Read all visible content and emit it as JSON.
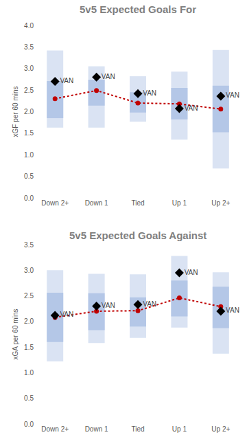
{
  "chart_data": [
    {
      "type": "range",
      "title": "5v5 Expected Goals For",
      "ylabel": "xGF per 60 mins",
      "categories": [
        "Down 2+",
        "Down 1",
        "Tied",
        "Up 1",
        "Up 2+"
      ],
      "ylim": [
        0,
        4
      ],
      "yticks": [
        {
          "value": 0,
          "label": "0.0"
        },
        0.5,
        {
          "value": 1,
          "label": "1.0"
        },
        1.5,
        {
          "value": 2,
          "label": "2.0"
        },
        2.5,
        {
          "value": 3,
          "label": "3.0"
        },
        3.5,
        {
          "value": 4,
          "label": "4.0"
        }
      ],
      "grid": false,
      "series": [
        {
          "type": "range",
          "color": "#dae3f3",
          "low": [
            1.63,
            1.63,
            1.77,
            1.35,
            0.68
          ],
          "high": [
            3.42,
            3.05,
            2.82,
            2.93,
            3.43
          ]
        },
        {
          "type": "range",
          "color": "#b4c7e7",
          "low": [
            1.85,
            2.14,
            1.98,
            1.82,
            1.52
          ],
          "high": [
            2.71,
            2.74,
            2.45,
            2.55,
            2.6
          ]
        },
        {
          "type": "line",
          "color": "#c00000",
          "line_style": "dot",
          "marker": "circle",
          "values": [
            2.3,
            2.49,
            2.2,
            2.18,
            2.06
          ]
        },
        {
          "type": "scatter",
          "color": "#000000",
          "marker": "diamond",
          "values": [
            2.7,
            2.8,
            2.42,
            2.07,
            2.36
          ],
          "labels": [
            "VAN",
            "VAN",
            "VAN",
            "VAN",
            "VAN"
          ]
        }
      ]
    },
    {
      "type": "range",
      "title": "5v5 Expected Goals Against",
      "ylabel": "xGA per 60 mins",
      "categories": [
        "Down 2+",
        "Down 1",
        "Tied",
        "Up 1",
        "Up 2+"
      ],
      "ylim": [
        0,
        3.5
      ],
      "yticks": [
        {
          "value": 0,
          "label": "0.0"
        },
        0.5,
        {
          "value": 1,
          "label": "1.0"
        },
        1.5,
        {
          "value": 2,
          "label": "2.0"
        },
        2.5,
        {
          "value": 3,
          "label": "3.0"
        },
        3.5
      ],
      "grid": false,
      "series": [
        {
          "type": "range",
          "color": "#dae3f3",
          "low": [
            1.22,
            1.58,
            1.68,
            1.88,
            1.37
          ],
          "high": [
            3.0,
            2.93,
            2.92,
            3.28,
            2.96
          ]
        },
        {
          "type": "range",
          "color": "#b4c7e7",
          "low": [
            1.6,
            1.83,
            1.9,
            2.1,
            1.87
          ],
          "high": [
            2.56,
            2.55,
            2.47,
            2.8,
            2.68
          ]
        },
        {
          "type": "line",
          "color": "#c00000",
          "line_style": "dot",
          "marker": "circle",
          "values": [
            2.08,
            2.2,
            2.21,
            2.46,
            2.29
          ]
        },
        {
          "type": "scatter",
          "color": "#000000",
          "marker": "diamond",
          "values": [
            2.12,
            2.3,
            2.33,
            2.95,
            2.2
          ],
          "labels": [
            "VAN",
            "VAN",
            "VAN",
            "VAN",
            "VAN"
          ]
        }
      ]
    }
  ]
}
